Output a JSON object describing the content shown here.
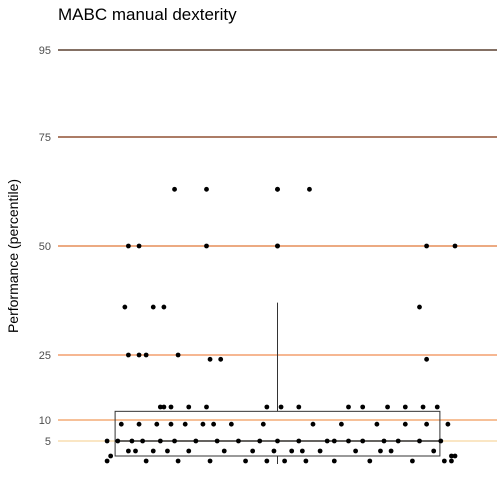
{
  "chart_data": {
    "type": "scatter",
    "title": "MABC manual dexterity",
    "xlabel": "",
    "ylabel": "Performance (percentile)",
    "yticks": [
      "5",
      "10",
      "25",
      "50",
      "75",
      "95"
    ],
    "ylim": [
      0,
      100
    ],
    "grid": false,
    "legend": "none",
    "reference_lines": [
      {
        "value": 95,
        "color": "#3b1a08"
      },
      {
        "value": 75,
        "color": "#7a2e0a"
      },
      {
        "value": 50,
        "color": "#e07838"
      },
      {
        "value": 25,
        "color": "#f08c50"
      },
      {
        "value": 10,
        "color": "#f09a5a"
      },
      {
        "value": 5,
        "color": "#f7d7a0"
      }
    ],
    "boxplot": {
      "x_range": [
        0.02,
        0.98
      ],
      "x_median": 0.5,
      "min": 1,
      "q1": 2,
      "median": 5,
      "q3": 12,
      "max": 37
    },
    "points": [
      {
        "x": 0.03,
        "y": 2
      },
      {
        "x": 0.02,
        "y": 5
      },
      {
        "x": 0.02,
        "y": 1
      },
      {
        "x": 0.06,
        "y": 9
      },
      {
        "x": 0.08,
        "y": 3
      },
      {
        "x": 0.09,
        "y": 5
      },
      {
        "x": 0.11,
        "y": 9
      },
      {
        "x": 0.12,
        "y": 5
      },
      {
        "x": 0.13,
        "y": 1
      },
      {
        "x": 0.15,
        "y": 3
      },
      {
        "x": 0.16,
        "y": 9
      },
      {
        "x": 0.17,
        "y": 5
      },
      {
        "x": 0.19,
        "y": 3
      },
      {
        "x": 0.21,
        "y": 5
      },
      {
        "x": 0.22,
        "y": 1
      },
      {
        "x": 0.24,
        "y": 9
      },
      {
        "x": 0.25,
        "y": 3
      },
      {
        "x": 0.27,
        "y": 5
      },
      {
        "x": 0.29,
        "y": 9
      },
      {
        "x": 0.31,
        "y": 1
      },
      {
        "x": 0.33,
        "y": 5
      },
      {
        "x": 0.35,
        "y": 3
      },
      {
        "x": 0.37,
        "y": 9
      },
      {
        "x": 0.39,
        "y": 5
      },
      {
        "x": 0.41,
        "y": 1
      },
      {
        "x": 0.43,
        "y": 3
      },
      {
        "x": 0.45,
        "y": 5
      },
      {
        "x": 0.47,
        "y": 1
      },
      {
        "x": 0.49,
        "y": 3
      },
      {
        "x": 0.5,
        "y": 5
      },
      {
        "x": 0.52,
        "y": 1
      },
      {
        "x": 0.54,
        "y": 3
      },
      {
        "x": 0.56,
        "y": 5
      },
      {
        "x": 0.58,
        "y": 1
      },
      {
        "x": 0.6,
        "y": 9
      },
      {
        "x": 0.62,
        "y": 3
      },
      {
        "x": 0.64,
        "y": 5
      },
      {
        "x": 0.66,
        "y": 1
      },
      {
        "x": 0.68,
        "y": 9
      },
      {
        "x": 0.7,
        "y": 5
      },
      {
        "x": 0.72,
        "y": 3
      },
      {
        "x": 0.74,
        "y": 5
      },
      {
        "x": 0.76,
        "y": 1
      },
      {
        "x": 0.78,
        "y": 9
      },
      {
        "x": 0.8,
        "y": 5
      },
      {
        "x": 0.82,
        "y": 3
      },
      {
        "x": 0.84,
        "y": 5
      },
      {
        "x": 0.86,
        "y": 9
      },
      {
        "x": 0.88,
        "y": 1
      },
      {
        "x": 0.9,
        "y": 5
      },
      {
        "x": 0.92,
        "y": 9
      },
      {
        "x": 0.94,
        "y": 3
      },
      {
        "x": 0.96,
        "y": 5
      },
      {
        "x": 0.97,
        "y": 1
      },
      {
        "x": 0.98,
        "y": 9
      },
      {
        "x": 0.99,
        "y": 2
      },
      {
        "x": 0.99,
        "y": 1
      },
      {
        "x": 1.0,
        "y": 2
      },
      {
        "x": 0.05,
        "y": 5
      },
      {
        "x": 0.32,
        "y": 9
      },
      {
        "x": 0.46,
        "y": 9
      },
      {
        "x": 0.66,
        "y": 5
      },
      {
        "x": 0.1,
        "y": 3
      },
      {
        "x": 0.2,
        "y": 9
      },
      {
        "x": 0.57,
        "y": 3
      },
      {
        "x": 0.79,
        "y": 3
      },
      {
        "x": 0.17,
        "y": 13
      },
      {
        "x": 0.18,
        "y": 13
      },
      {
        "x": 0.2,
        "y": 13
      },
      {
        "x": 0.25,
        "y": 13
      },
      {
        "x": 0.3,
        "y": 13
      },
      {
        "x": 0.47,
        "y": 13
      },
      {
        "x": 0.51,
        "y": 13
      },
      {
        "x": 0.56,
        "y": 13
      },
      {
        "x": 0.7,
        "y": 13
      },
      {
        "x": 0.74,
        "y": 13
      },
      {
        "x": 0.81,
        "y": 13
      },
      {
        "x": 0.86,
        "y": 13
      },
      {
        "x": 0.91,
        "y": 13
      },
      {
        "x": 0.95,
        "y": 13
      },
      {
        "x": 0.08,
        "y": 25
      },
      {
        "x": 0.11,
        "y": 25
      },
      {
        "x": 0.13,
        "y": 25
      },
      {
        "x": 0.22,
        "y": 25
      },
      {
        "x": 0.34,
        "y": 24
      },
      {
        "x": 0.31,
        "y": 24
      },
      {
        "x": 0.92,
        "y": 24
      },
      {
        "x": 0.07,
        "y": 36
      },
      {
        "x": 0.15,
        "y": 36
      },
      {
        "x": 0.18,
        "y": 36
      },
      {
        "x": 0.9,
        "y": 36
      },
      {
        "x": 0.08,
        "y": 50
      },
      {
        "x": 0.11,
        "y": 50
      },
      {
        "x": 0.5,
        "y": 50
      },
      {
        "x": 0.5,
        "y": 50
      },
      {
        "x": 0.92,
        "y": 50
      },
      {
        "x": 1.0,
        "y": 50
      },
      {
        "x": 0.3,
        "y": 50
      },
      {
        "x": 0.21,
        "y": 63
      },
      {
        "x": 0.3,
        "y": 63
      },
      {
        "x": 0.5,
        "y": 63
      },
      {
        "x": 0.5,
        "y": 63
      },
      {
        "x": 0.59,
        "y": 63
      }
    ]
  }
}
